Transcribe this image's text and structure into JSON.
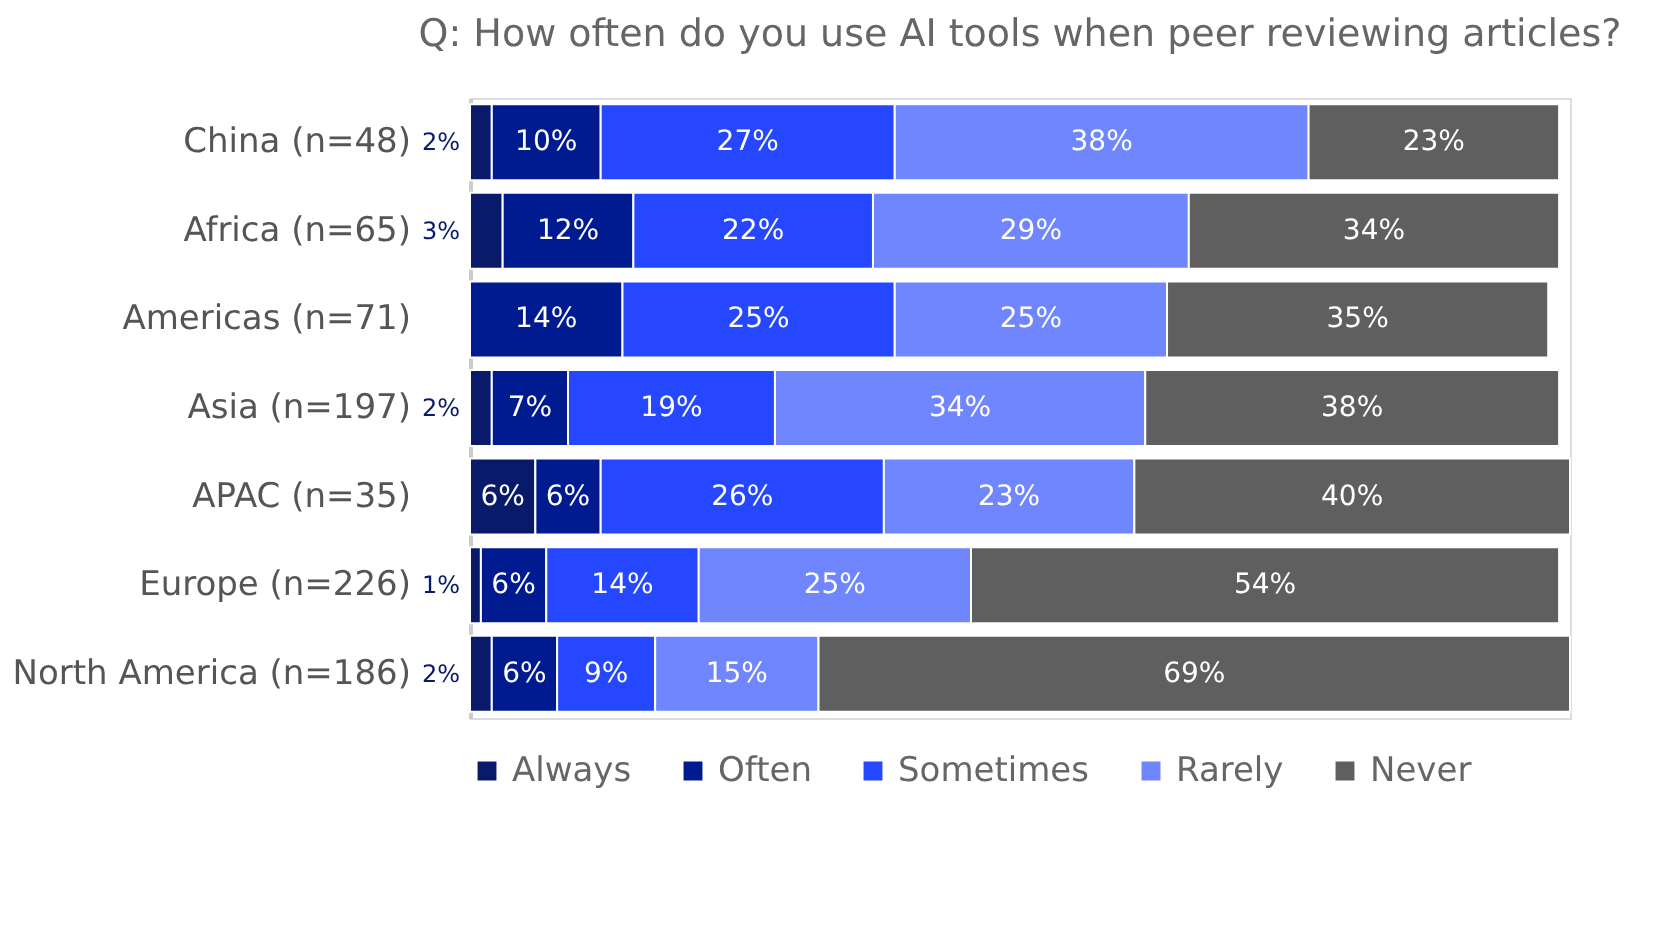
{
  "chart_data": {
    "type": "bar",
    "orientation": "horizontal",
    "stacked": true,
    "title": "Q: How often do you use AI tools when peer reviewing articles?",
    "categories": [
      "China (n=48)",
      "Africa (n=65)",
      "Americas (n=71)",
      "Asia (n=197)",
      "APAC (n=35)",
      "Europe (n=226)",
      "North America (n=186)"
    ],
    "series": [
      {
        "name": "Always",
        "color": "#0a1a6b",
        "values": [
          2,
          3,
          null,
          2,
          6,
          1,
          2
        ],
        "value_labels": [
          "2%",
          "3%",
          null,
          "2%",
          "6%",
          "1%",
          "2%"
        ]
      },
      {
        "name": "Often",
        "color": "#001a8f",
        "values": [
          10,
          12,
          14,
          7,
          6,
          6,
          6
        ],
        "value_labels": [
          "10%",
          "12%",
          "14%",
          "7%",
          "6%",
          "6%",
          "6%"
        ]
      },
      {
        "name": "Sometimes",
        "color": "#2447ff",
        "values": [
          27,
          22,
          25,
          19,
          26,
          14,
          9
        ],
        "value_labels": [
          "27%",
          "22%",
          "25%",
          "19%",
          "26%",
          "14%",
          "9%"
        ]
      },
      {
        "name": "Rarely",
        "color": "#6f86ff",
        "values": [
          38,
          29,
          25,
          34,
          23,
          25,
          15
        ],
        "value_labels": [
          "38%",
          "29%",
          "25%",
          "34%",
          "23%",
          "25%",
          "15%"
        ]
      },
      {
        "name": "Never",
        "color": "#5f5f5f",
        "values": [
          23,
          34,
          35,
          38,
          40,
          54,
          69
        ],
        "value_labels": [
          "23%",
          "34%",
          "35%",
          "38%",
          "40%",
          "54%",
          "69%"
        ]
      }
    ],
    "xlim": [
      0,
      101
    ],
    "tick_labels": "y",
    "grid": false,
    "legend": "bottom"
  }
}
